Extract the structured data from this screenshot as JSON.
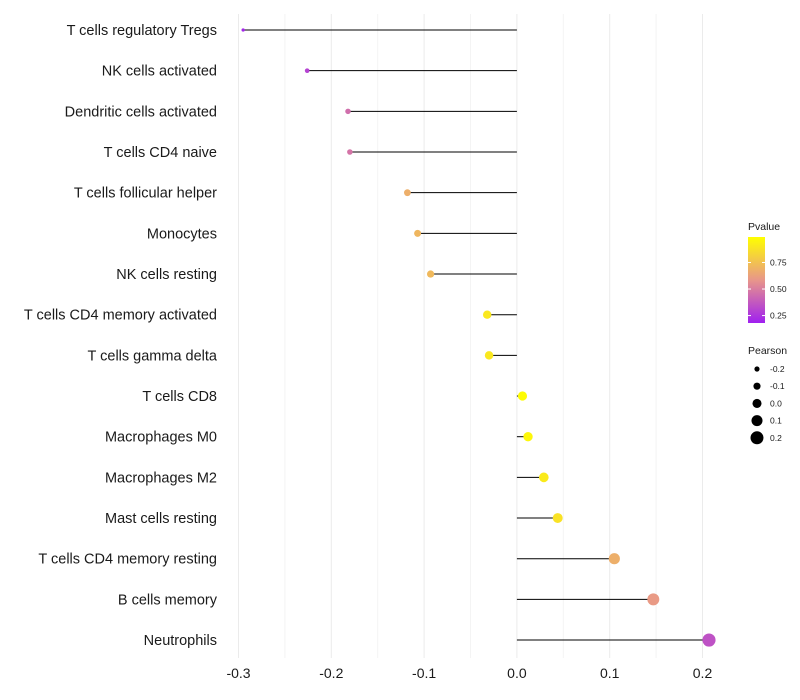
{
  "chart_data": {
    "type": "lollipop",
    "title": "",
    "xlabel": "",
    "ylabel": "",
    "xlim": [
      -0.3,
      0.2
    ],
    "x_ticks": [
      -0.3,
      -0.2,
      -0.1,
      0.0,
      0.1,
      0.2
    ],
    "x_tick_labels": [
      "-0.3",
      "-0.2",
      "-0.1",
      "0.0",
      "0.1",
      "0.2"
    ],
    "categories": [
      "T cells regulatory  Tregs",
      "NK cells activated",
      "Dendritic cells activated",
      "T cells CD4 naive",
      "T cells follicular helper",
      "Monocytes",
      "NK cells resting",
      "T cells CD4 memory activated",
      "T cells gamma delta",
      "T cells CD8",
      "Macrophages M0",
      "Macrophages M2",
      "Mast cells resting",
      "T cells CD4 memory resting",
      "B cells memory",
      "Neutrophils"
    ],
    "pearson": [
      -0.295,
      -0.226,
      -0.182,
      -0.18,
      -0.118,
      -0.107,
      -0.093,
      -0.032,
      -0.03,
      0.006,
      0.012,
      0.029,
      0.044,
      0.105,
      0.147,
      0.207
    ],
    "pvalue": [
      0.2,
      0.3,
      0.45,
      0.47,
      0.68,
      0.71,
      0.72,
      0.9,
      0.9,
      0.98,
      0.96,
      0.91,
      0.88,
      0.68,
      0.6,
      0.35
    ],
    "grid": true,
    "legend_position": "right",
    "legends": {
      "color": {
        "title": "Pvalue",
        "ticks": [
          0.25,
          0.5,
          0.75
        ],
        "tick_labels": [
          "0.25",
          "0.50",
          "0.75"
        ],
        "range": [
          0.18,
          0.99
        ],
        "low_color": "#a020f0",
        "mid_color": "#e8968a",
        "high_color": "#ffff00"
      },
      "size": {
        "title": "Pearson",
        "values": [
          -0.2,
          -0.1,
          0.0,
          0.1,
          0.2
        ],
        "labels": [
          "-0.2",
          "-0.1",
          "0.0",
          "0.1",
          "0.2"
        ]
      }
    },
    "segment_color": "#000000",
    "grid_color": "#ebebeb"
  }
}
